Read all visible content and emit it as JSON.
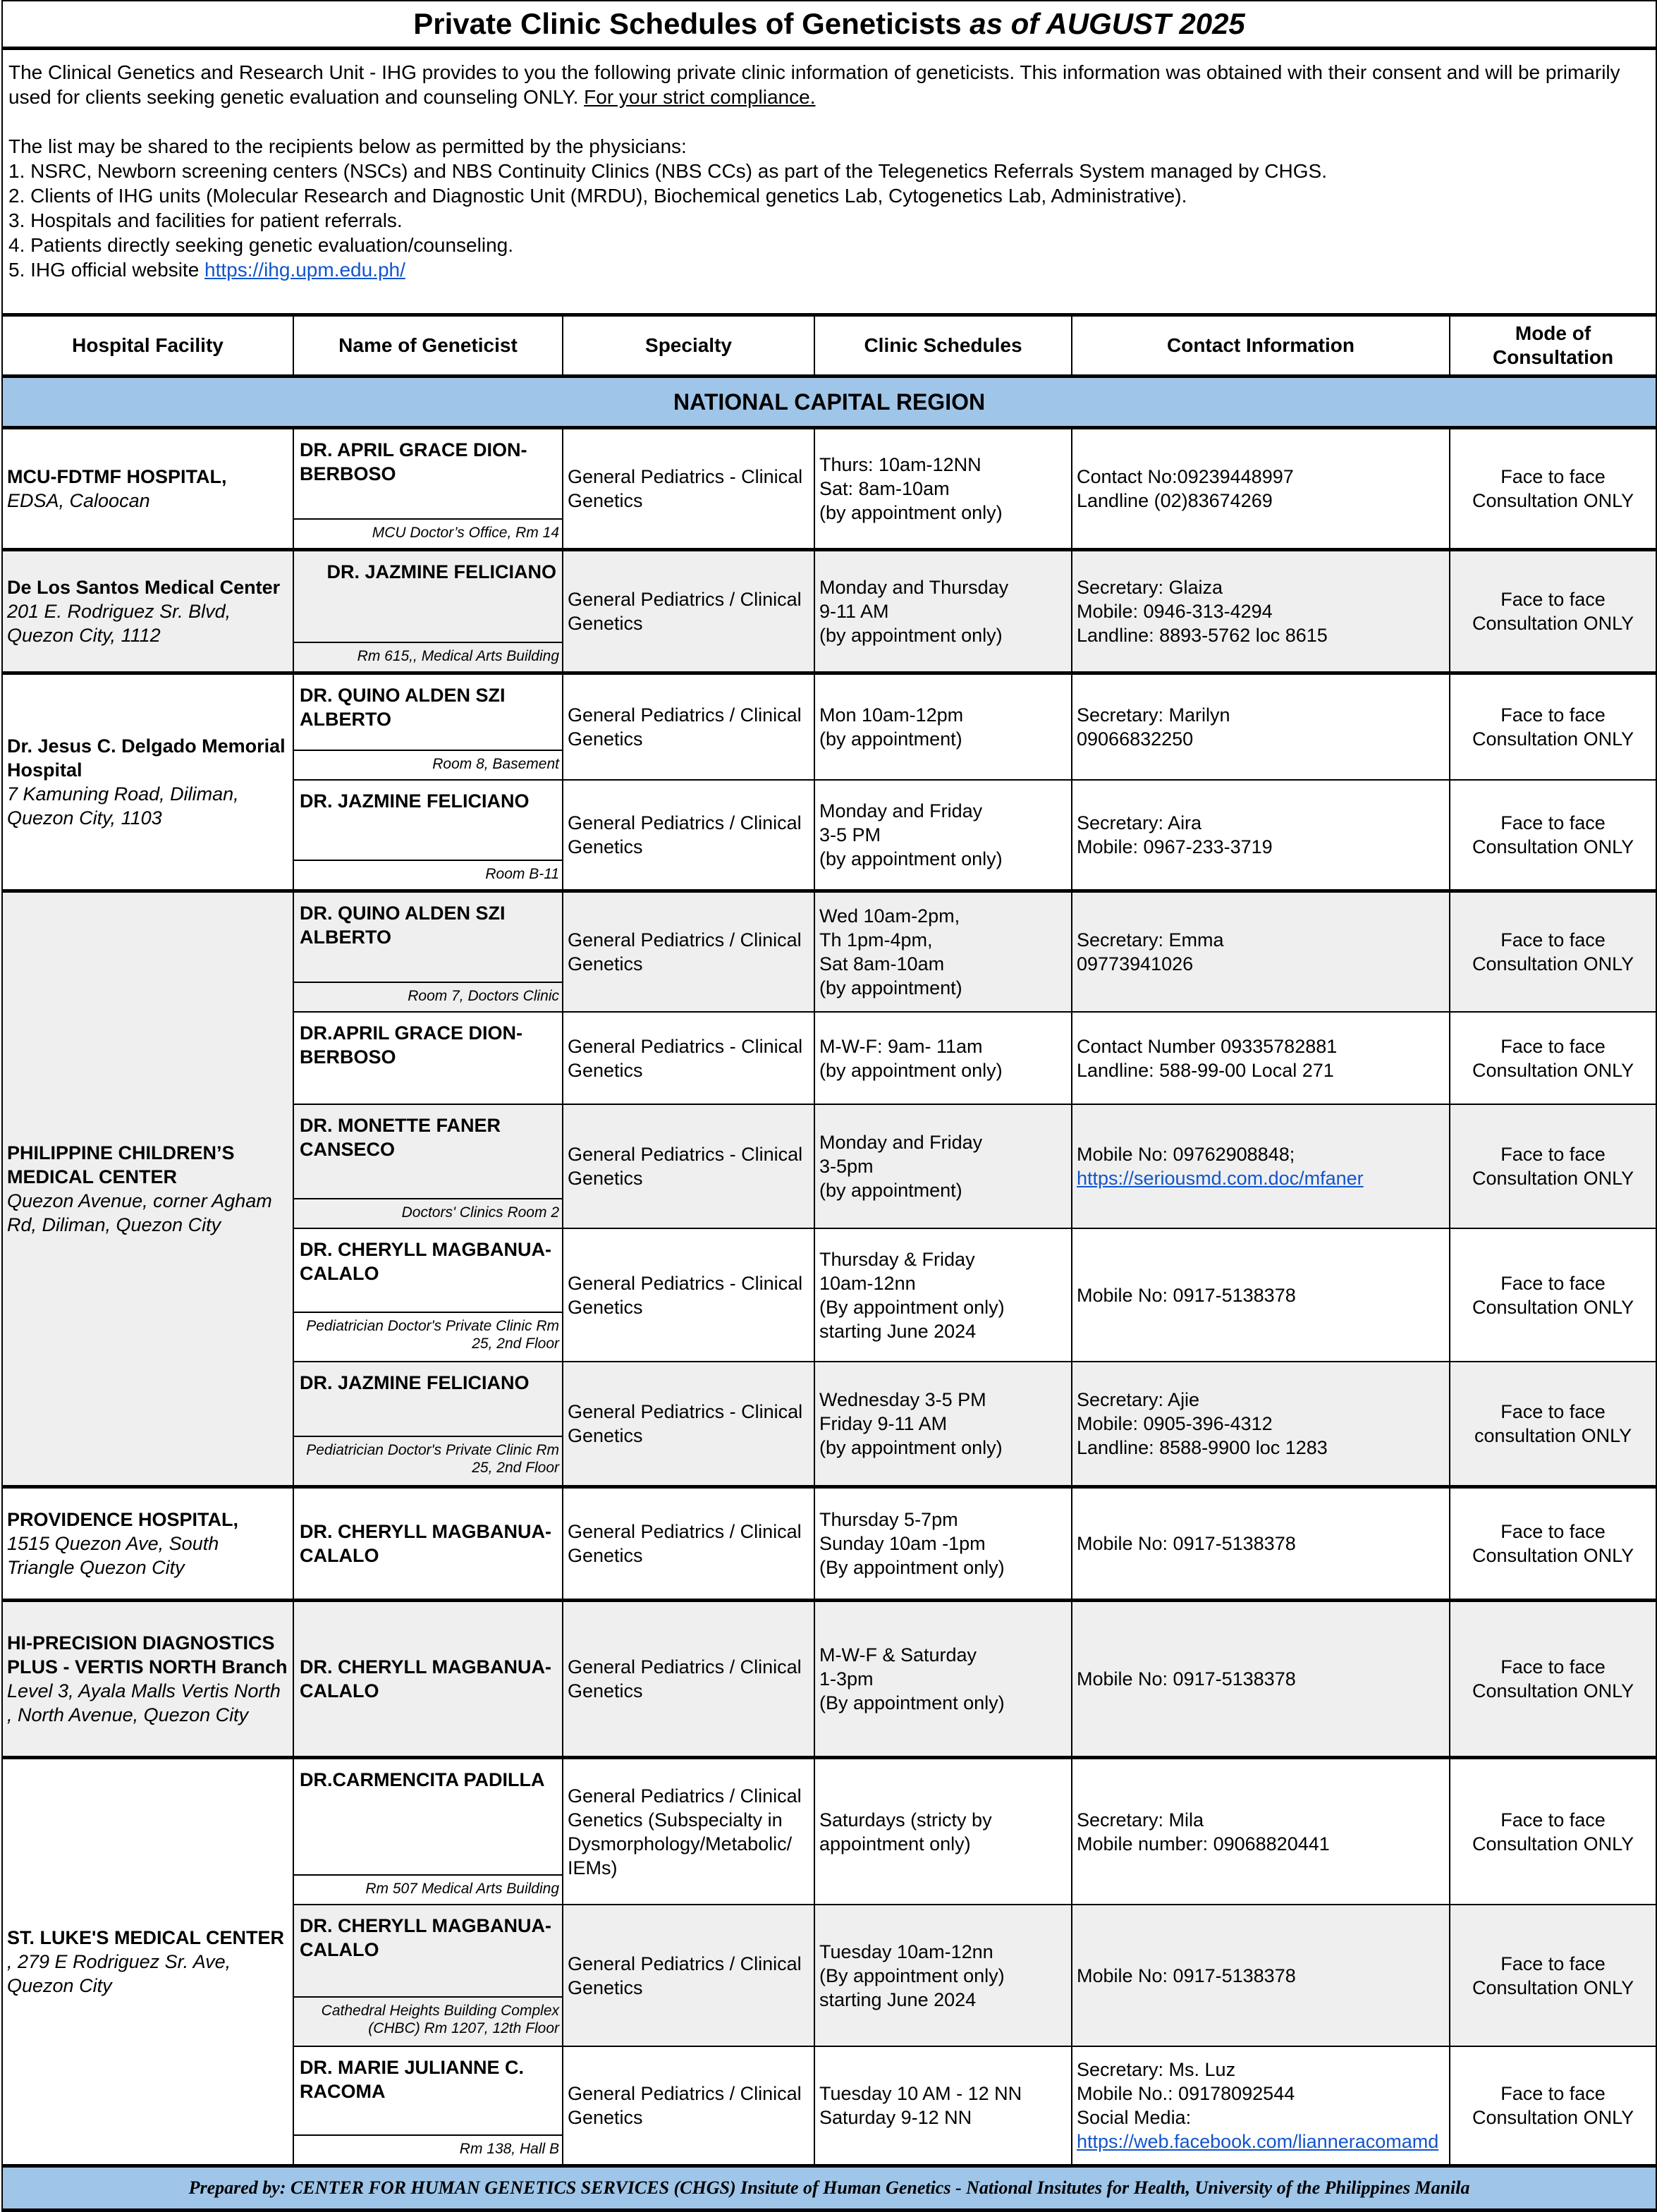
{
  "title": {
    "main": "Private Clinic Schedules of Geneticists ",
    "italic": "as of AUGUST 2025"
  },
  "intro": {
    "paragraph": "The Clinical Genetics and Research Unit - IHG provides to you the following private clinic information of geneticists. This information was obtained with their consent and will be primarily used for clients seeking genetic evaluation and counseling ONLY. ",
    "compliance": "For your strict compliance.",
    "list_intro": "The list may be shared to the recipients below as permitted by the physicians:",
    "items": [
      "1. NSRC, Newborn screening centers (NSCs) and NBS Continuity Clinics (NBS CCs) as part of the Telegenetics Referrals System managed by CHGS.",
      "2. Clients of IHG units (Molecular Research and Diagnostic Unit (MRDU), Biochemical genetics Lab, Cytogenetics Lab, Administrative).",
      "3. Hospitals and facilities for patient referrals.",
      "4. Patients directly seeking genetic evaluation/counseling."
    ],
    "website_label": "5. IHG official website ",
    "website_link": "https://ihg.upm.edu.ph/"
  },
  "headers": [
    "Hospital Facility",
    "Name  of Geneticist",
    "Specialty",
    "Clinic Schedules",
    "Contact Information",
    "Mode of Consultation"
  ],
  "region": "NATIONAL CAPITAL REGION",
  "hospitals": [
    {
      "name": "MCU-FDTMF HOSPITAL,",
      "address": "EDSA, Caloocan",
      "gray": false,
      "doctors": [
        {
          "name": "DR. APRIL GRACE DION-BERBOSO",
          "room": "MCU Doctor’s Office, Rm 14",
          "specialty": "General Pediatrics - Clinical Genetics",
          "schedule": [
            "Thurs: 10am-12NN",
            "Sat: 8am-10am",
            "(by appointment only)"
          ],
          "contact": [
            "Contact No:09239448997",
            "Landline (02)83674269"
          ],
          "mode": "Face to face Consultation ONLY",
          "gray": false
        }
      ]
    },
    {
      "name": "De Los Santos Medical Center",
      "address": "201 E. Rodriguez Sr. Blvd, Quezon City, 1112",
      "gray": true,
      "doctors": [
        {
          "name": "DR. JAZMINE FELICIANO",
          "right": true,
          "room": "Rm 615,, Medical Arts Building",
          "specialty": "General Pediatrics / Clinical Genetics",
          "schedule": [
            "Monday and Thursday",
            "9-11 AM",
            "(by appointment only)"
          ],
          "contact": [
            "Secretary: Glaiza",
            "Mobile: 0946-313-4294",
            "Landline: 8893-5762 loc 8615"
          ],
          "mode": "Face to face Consultation ONLY",
          "gray": true
        }
      ]
    },
    {
      "name": "Dr. Jesus C. Delgado Memorial Hospital",
      "address": "7 Kamuning Road, Diliman, Quezon City, 1103",
      "gray": false,
      "doctors": [
        {
          "name": "DR. QUINO ALDEN SZI ALBERTO",
          "room": "Room 8, Basement",
          "specialty": "General Pediatrics / Clinical Genetics",
          "schedule": [
            "Mon 10am-12pm",
            "(by appointment)"
          ],
          "contact": [
            "Secretary: Marilyn",
            "09066832250"
          ],
          "mode": "Face to face Consultation ONLY",
          "gray": false
        },
        {
          "name": "DR. JAZMINE FELICIANO",
          "room": "Room B-11",
          "specialty": "General Pediatrics / Clinical Genetics",
          "schedule": [
            "Monday and Friday",
            "3-5 PM",
            "(by appointment only)"
          ],
          "contact": [
            "Secretary: Aira",
            "Mobile: 0967-233-3719"
          ],
          "mode": "Face to face Consultation ONLY",
          "gray": false
        }
      ]
    },
    {
      "name": "PHILIPPINE CHILDREN’S MEDICAL CENTER",
      "address": "Quezon Avenue, corner Agham Rd, Diliman, Quezon City",
      "gray": true,
      "doctors": [
        {
          "name": "DR. QUINO ALDEN SZI ALBERTO",
          "room": "Room 7, Doctors Clinic",
          "specialty": "General Pediatrics / Clinical Genetics",
          "schedule": [
            "Wed 10am-2pm,",
            "Th 1pm-4pm,",
            "Sat 8am-10am",
            "(by appointment)"
          ],
          "contact": [
            "Secretary: Emma",
            "09773941026"
          ],
          "mode": "Face to face Consultation ONLY",
          "gray": true
        },
        {
          "name": "DR.APRIL GRACE DION-BERBOSO",
          "room": "",
          "specialty": "General Pediatrics - Clinical Genetics",
          "schedule": [
            "M-W-F: 9am- 11am",
            "(by appointment only)"
          ],
          "contact": [
            "Contact Number 09335782881",
            "Landline: 588-99-00 Local 271"
          ],
          "mode": "Face to face Consultation ONLY",
          "gray": false
        },
        {
          "name": "DR. MONETTE FANER CANSECO",
          "room": "Doctors' Clinics Room 2",
          "specialty": "General Pediatrics - Clinical Genetics",
          "schedule": [
            "Monday and Friday",
            "3-5pm",
            "(by appointment)"
          ],
          "contact": [
            "Mobile No: 09762908848;",
            {
              "link": "https://seriousmd.com.doc/mfaner"
            }
          ],
          "mode": "Face to face Consultation ONLY",
          "gray": true
        },
        {
          "name": "DR. CHERYLL MAGBANUA-CALALO",
          "room": "Pediatrician Doctor's Private Clinic Rm 25, 2nd Floor",
          "specialty": "General Pediatrics - Clinical Genetics",
          "schedule": [
            "Thursday & Friday",
            "10am-12nn",
            "(By appointment only)",
            "starting June 2024"
          ],
          "contact": [
            "Mobile No: 0917-5138378"
          ],
          "mode": "Face to face Consultation ONLY",
          "gray": false
        },
        {
          "name": "DR. JAZMINE FELICIANO",
          "room": "Pediatrician Doctor's Private Clinic Rm 25, 2nd Floor",
          "specialty": "General Pediatrics - Clinical Genetics",
          "schedule": [
            "Wednesday 3-5 PM",
            "Friday 9-11 AM",
            "(by appointment only)"
          ],
          "contact": [
            "Secretary: Ajie",
            "Mobile: 0905-396-4312",
            "Landline: 8588-9900 loc 1283"
          ],
          "mode": "Face to face consultation ONLY",
          "gray": true
        }
      ]
    },
    {
      "name": "PROVIDENCE HOSPITAL,",
      "address": "1515 Quezon Ave, South Triangle Quezon City",
      "gray": false,
      "doctors": [
        {
          "name": "DR. CHERYLL MAGBANUA-CALALO",
          "room": null,
          "specialty": "General Pediatrics / Clinical Genetics",
          "schedule": [
            "Thursday 5-7pm",
            "Sunday 10am -1pm",
            "(By appointment only)"
          ],
          "contact": [
            "Mobile No: 0917-5138378"
          ],
          "mode": "Face to face Consultation ONLY",
          "gray": false
        }
      ]
    },
    {
      "name": "HI-PRECISION DIAGNOSTICS PLUS - VERTIS NORTH Branch",
      "address": "Level 3,  Ayala Malls Vertis North , North Avenue, Quezon City",
      "gray": true,
      "doctors": [
        {
          "name": "DR. CHERYLL MAGBANUA-CALALO",
          "room": null,
          "specialty": "General Pediatrics / Clinical Genetics",
          "schedule": [
            "M-W-F & Saturday",
            "1-3pm",
            "(By appointment only)"
          ],
          "contact": [
            "Mobile No: 0917-5138378"
          ],
          "mode": "Face to face Consultation ONLY",
          "gray": true
        }
      ]
    },
    {
      "name": "ST. LUKE'S MEDICAL CENTER",
      "address": ", 279 E Rodriguez Sr. Ave, Quezon City",
      "inline": true,
      "gray": false,
      "doctors": [
        {
          "name": "DR.CARMENCITA PADILLA",
          "room": "Rm 507 Medical Arts Building",
          "specialty": "General Pediatrics / Clinical Genetics (Subspecialty in Dysmorphology/Metabolic/ IEMs)",
          "schedule": [
            "Saturdays (stricty by appointment only)"
          ],
          "contact": [
            "Secretary: Mila",
            "Mobile number: 09068820441"
          ],
          "mode": "Face to face Consultation ONLY",
          "gray": false
        },
        {
          "name": "DR. CHERYLL MAGBANUA-CALALO",
          "room": "Cathedral Heights Building Complex (CHBC)  Rm 1207, 12th Floor",
          "specialty": "General Pediatrics / Clinical Genetics",
          "schedule": [
            "Tuesday 10am-12nn",
            "(By appointment only)",
            "starting June 2024"
          ],
          "contact": [
            "Mobile No: 0917-5138378"
          ],
          "mode": "Face to face Consultation ONLY",
          "gray": true
        },
        {
          "name": "DR. MARIE JULIANNE C. RACOMA",
          "room": "Rm 138, Hall B",
          "specialty": "General Pediatrics / Clinical Genetics",
          "schedule": [
            "Tuesday 10 AM - 12 NN",
            "Saturday 9-12 NN"
          ],
          "contact": [
            "Secretary: Ms. Luz",
            "Mobile No.: 09178092544",
            "Social Media:",
            {
              "link": "https://web.facebook.com/lianneracomamd"
            }
          ],
          "mode": "Face to face Consultation ONLY",
          "gray": false
        }
      ]
    }
  ],
  "footer": "Prepared by:  CENTER FOR HUMAN GENETICS SERVICES (CHGS) Insitute of Human Genetics - National Insitutes for Health, University of the Philippines Manila",
  "colors": {
    "region_band": "#9fc5e8",
    "row_shade": "#efefef",
    "link": "#1155cc"
  }
}
